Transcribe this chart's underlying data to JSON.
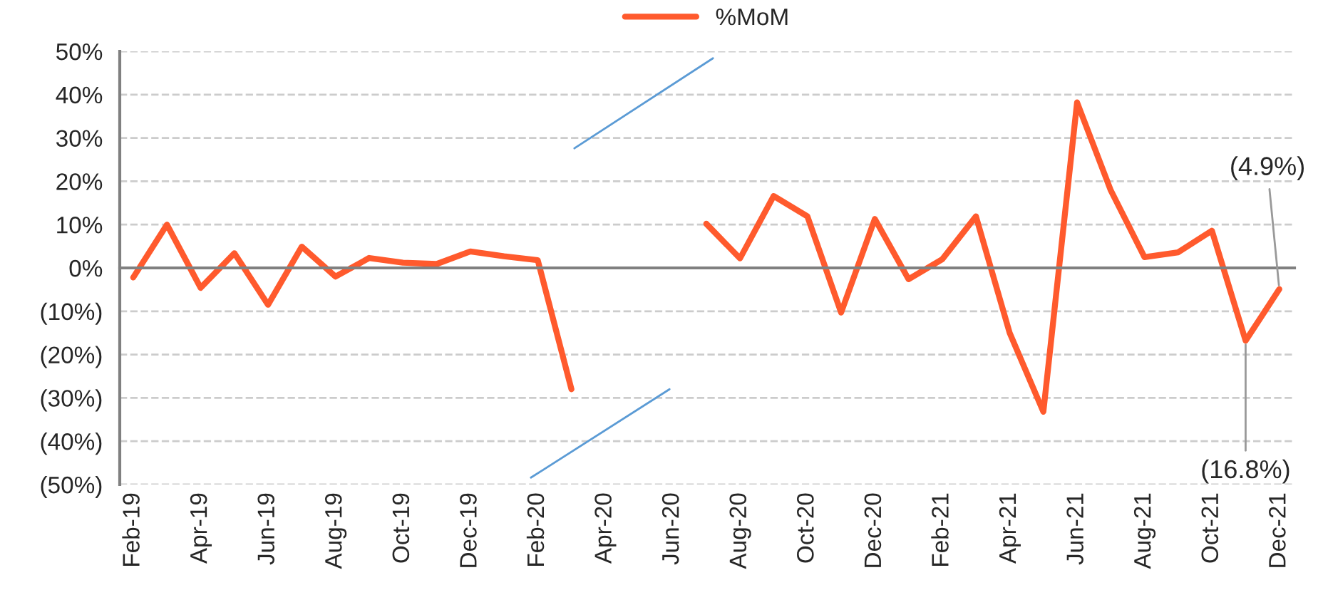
{
  "chart_data": {
    "type": "line",
    "categories": [
      "Feb-19",
      null,
      "Apr-19",
      null,
      "Jun-19",
      null,
      "Aug-19",
      null,
      "Oct-19",
      null,
      "Dec-19",
      null,
      "Feb-20",
      null,
      "Apr-20",
      null,
      "Jun-20",
      null,
      "Aug-20",
      null,
      "Oct-20",
      null,
      "Dec-20",
      null,
      "Feb-21",
      null,
      "Apr-21",
      null,
      "Jun-21",
      null,
      "Aug-21",
      null,
      "Oct-21",
      null,
      "Dec-21"
    ],
    "series": [
      {
        "name": "%MoM",
        "color": "#ff5a2d",
        "values": [
          -2.2,
          10.0,
          -4.6,
          3.4,
          -8.5,
          4.9,
          -2.0,
          2.3,
          1.2,
          0.9,
          3.8,
          2.7,
          1.8,
          -28,
          null,
          null,
          null,
          10.2,
          2.2,
          16.6,
          11.9,
          -10.3,
          11.3,
          -2.6,
          2.0,
          11.9,
          -15,
          -33.2,
          38.2,
          17.9,
          2.5,
          3.6,
          8.6,
          -16.8,
          -4.9
        ],
        "value_labels": [
          null,
          null,
          null,
          null,
          null,
          null,
          null,
          null,
          null,
          null,
          null,
          null,
          null,
          null,
          null,
          null,
          null,
          null,
          null,
          null,
          null,
          null,
          null,
          null,
          null,
          null,
          null,
          null,
          null,
          null,
          null,
          null,
          null,
          "(16.8%)",
          "(4.9%)"
        ]
      }
    ],
    "ylim": [
      -50,
      50
    ],
    "yticks": [
      {
        "value": -50,
        "label": "(50%)"
      },
      {
        "value": -40,
        "label": "(40%)"
      },
      {
        "value": -30,
        "label": "(30%)"
      },
      {
        "value": -20,
        "label": "(20%)"
      },
      {
        "value": -10,
        "label": "(10%)"
      },
      {
        "value": 0,
        "label": "0%"
      },
      {
        "value": 10,
        "label": "10%"
      },
      {
        "value": 20,
        "label": "20%"
      },
      {
        "value": 30,
        "label": "30%"
      },
      {
        "value": 40,
        "label": "40%"
      },
      {
        "value": 50,
        "label": "50%"
      }
    ],
    "grid": "y",
    "legend": "top",
    "line_style": "solid",
    "marker": "none"
  }
}
